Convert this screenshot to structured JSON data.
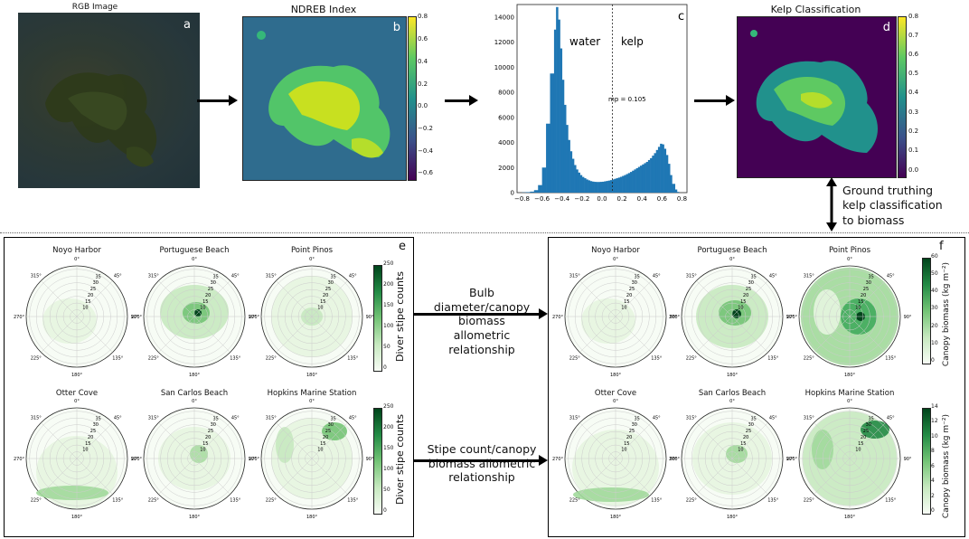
{
  "top": {
    "rgb": {
      "title": "RGB Image",
      "letter": "a"
    },
    "ndreb": {
      "title": "NDREB Index",
      "letter": "b",
      "colorbar_ticks": [
        "0.8",
        "0.6",
        "0.4",
        "0.2",
        "0.0",
        "−0.2",
        "−0.4",
        "−0.6"
      ]
    },
    "histogram": {
      "letter": "c",
      "water_label": "water",
      "kelp_label": "kelp",
      "threshold_label": "mp = 0.105"
    },
    "kelp": {
      "title": "Kelp Classification",
      "letter": "d",
      "colorbar_ticks": [
        "0.8",
        "0.7",
        "0.6",
        "0.5",
        "0.4",
        "0.3",
        "0.2",
        "0.1",
        "0.0"
      ]
    },
    "ground_truth": "Ground truthing kelp classification to biomass"
  },
  "chart_data": {
    "type": "bar",
    "title": "",
    "xlabel": "",
    "ylabel": "",
    "x_ticks": [
      "−0.8",
      "−0.6",
      "−0.4",
      "−0.2",
      "0.0",
      "0.2",
      "0.4",
      "0.6",
      "0.8"
    ],
    "y_ticks": [
      "0",
      "2000",
      "4000",
      "6000",
      "8000",
      "10000",
      "12000",
      "14000"
    ],
    "xlim": [
      -0.85,
      0.85
    ],
    "ylim": [
      0,
      15000
    ],
    "threshold": 0.105,
    "bins": [
      -0.78,
      -0.74,
      -0.7,
      -0.66,
      -0.62,
      -0.58,
      -0.54,
      -0.5,
      -0.47,
      -0.45,
      -0.43,
      -0.41,
      -0.39,
      -0.37,
      -0.35,
      -0.33,
      -0.31,
      -0.29,
      -0.27,
      -0.25,
      -0.23,
      -0.21,
      -0.19,
      -0.17,
      -0.15,
      -0.13,
      -0.11,
      -0.09,
      -0.07,
      -0.05,
      -0.03,
      -0.01,
      0.01,
      0.03,
      0.05,
      0.07,
      0.09,
      0.11,
      0.13,
      0.15,
      0.17,
      0.19,
      0.21,
      0.23,
      0.25,
      0.27,
      0.29,
      0.31,
      0.33,
      0.35,
      0.37,
      0.39,
      0.41,
      0.43,
      0.45,
      0.47,
      0.49,
      0.51,
      0.53,
      0.55,
      0.57,
      0.59,
      0.61,
      0.63,
      0.65,
      0.67,
      0.69,
      0.71,
      0.73,
      0.75
    ],
    "counts": [
      20,
      40,
      80,
      200,
      600,
      2000,
      5500,
      9500,
      13000,
      14800,
      13800,
      11500,
      9000,
      7000,
      5400,
      4200,
      3300,
      2700,
      2200,
      1850,
      1600,
      1400,
      1250,
      1150,
      1050,
      980,
      920,
      880,
      860,
      850,
      850,
      860,
      870,
      900,
      930,
      960,
      1000,
      1050,
      1100,
      1150,
      1200,
      1260,
      1330,
      1400,
      1480,
      1560,
      1650,
      1750,
      1850,
      1950,
      2050,
      2150,
      2250,
      2350,
      2450,
      2600,
      2750,
      2950,
      3150,
      3400,
      3650,
      3900,
      3850,
      3500,
      3000,
      2300,
      1400,
      700,
      250,
      60
    ]
  },
  "arrows": {
    "bulb": "Bulb diameter/canopy biomass allometric relationship",
    "stipe": "Stipe count/canopy biomass allometric relationship"
  },
  "panel_e": {
    "letter": "e",
    "sites": [
      "Noyo Harbor",
      "Portuguese Beach",
      "Point Pinos",
      "Otter Cove",
      "San Carlos Beach",
      "Hopkins Marine Station"
    ],
    "cb_label": "Diver stipe counts",
    "cb_ticks": [
      "250",
      "200",
      "150",
      "100",
      "50",
      "0"
    ]
  },
  "panel_f": {
    "letter": "f",
    "sites": [
      "Noyo Harbor",
      "Portuguese Beach",
      "Point Pinos",
      "Otter Cove",
      "San Carlos Beach",
      "Hopkins Marine Station"
    ],
    "cb_label": "Canopy biomass (kg m⁻²)",
    "cb1_ticks": [
      "60",
      "50",
      "40",
      "30",
      "20",
      "10",
      "0"
    ],
    "cb2_ticks": [
      "14",
      "12",
      "10",
      "8",
      "6",
      "4",
      "2",
      "0"
    ]
  },
  "polar": {
    "angles": [
      "0°",
      "45°",
      "90°",
      "135°",
      "180°",
      "225°",
      "270°",
      "315°"
    ],
    "radii": [
      "10",
      "15",
      "20",
      "25",
      "30",
      "35"
    ]
  },
  "colors": {
    "green_dark": "#00441b",
    "green_mid": "#41ab5d",
    "green_light": "#e5f5e0",
    "hist_blue": "#1f77b4",
    "viridis_dark": "#440154",
    "viridis_yellow": "#fde725"
  }
}
